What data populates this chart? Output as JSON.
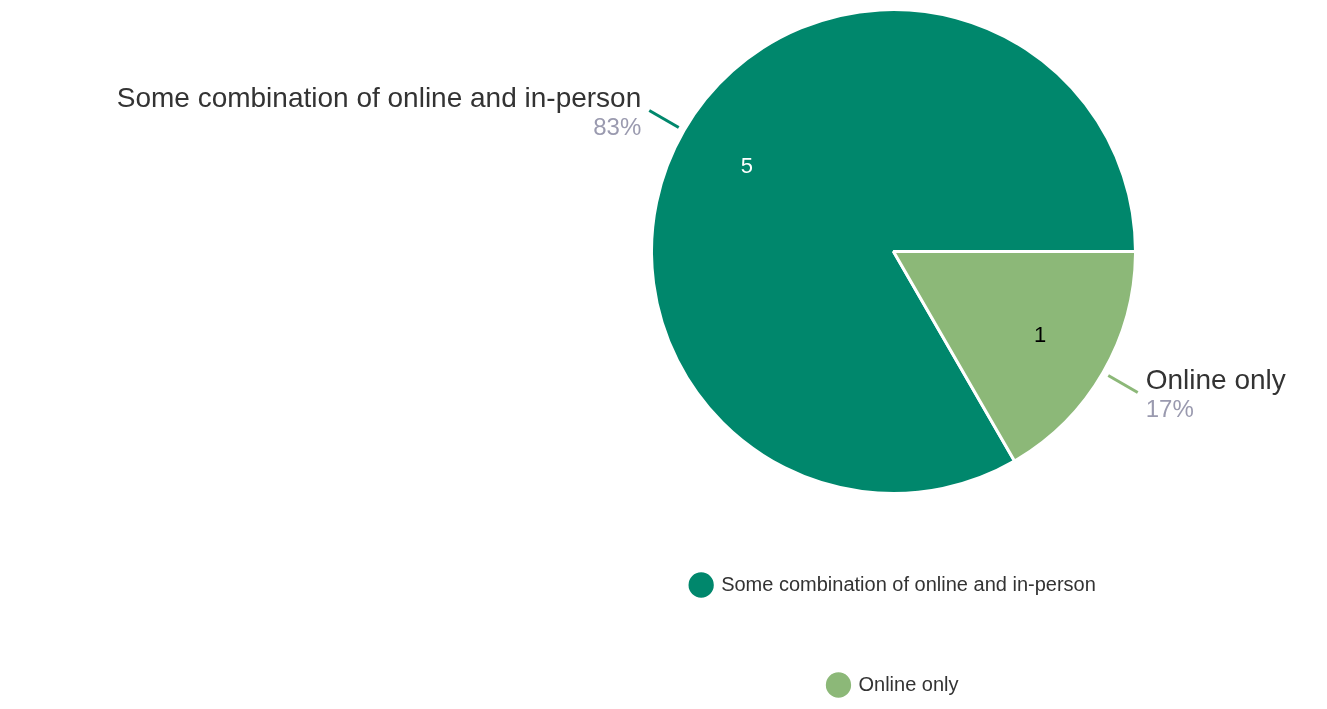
{
  "chart_data": {
    "type": "pie",
    "categories": [
      "Some combination of online and in-person",
      "Online only"
    ],
    "values": [
      5,
      1
    ],
    "colors": [
      "#00876c",
      "#8cb878"
    ],
    "data_labels": true,
    "legend": "bottom",
    "annotations": [
      {
        "text": "83%",
        "x": "Some combination of online and in-person"
      },
      {
        "text": "17%",
        "x": "Online only"
      }
    ]
  }
}
